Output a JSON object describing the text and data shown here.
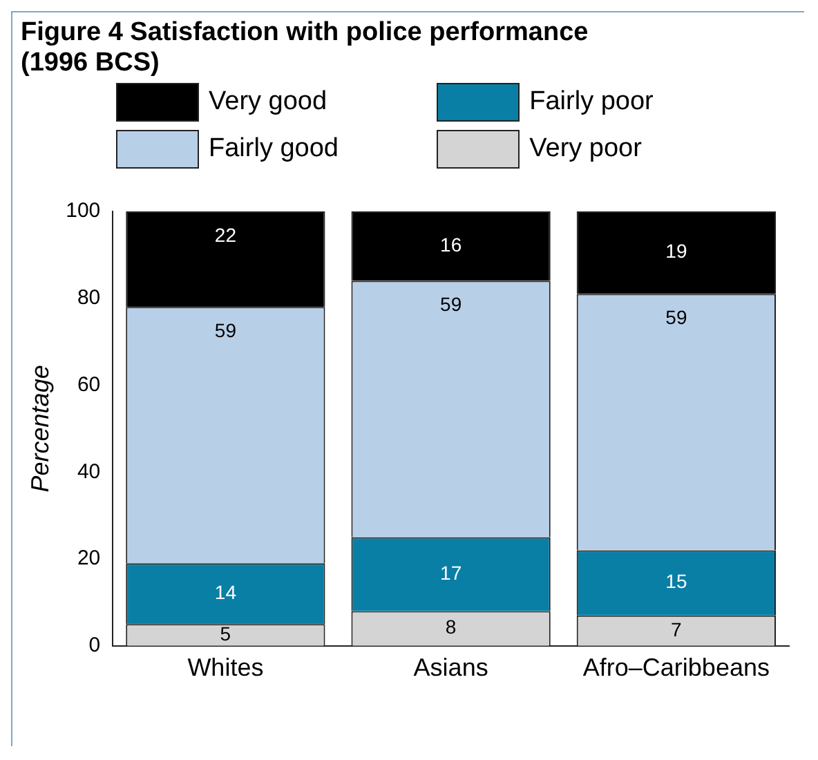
{
  "chart_data": {
    "type": "bar",
    "title": "Figure 4  Satisfaction with police performance (1996 BCS)",
    "ylabel": "Percentage",
    "categories": [
      "Whites",
      "Asians",
      "Afro–Caribbeans"
    ],
    "stacked": true,
    "ylim": [
      0,
      100
    ],
    "yticks": [
      0,
      20,
      40,
      60,
      80,
      100
    ],
    "grid": false,
    "legend": "top",
    "data_labels": true,
    "series": [
      {
        "name": "Very poor",
        "color": "#d4d4d4",
        "values": [
          5,
          8,
          7
        ]
      },
      {
        "name": "Fairly poor",
        "color": "#0a7fa6",
        "values": [
          14,
          17,
          15
        ]
      },
      {
        "name": "Fairly good",
        "color": "#b8cfe8",
        "values": [
          59,
          59,
          59
        ]
      },
      {
        "name": "Very good",
        "color": "#000000",
        "values": [
          22,
          16,
          19
        ]
      }
    ]
  }
}
